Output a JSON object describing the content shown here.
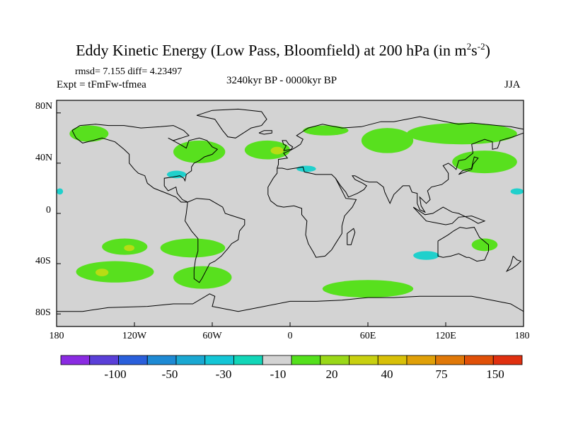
{
  "title": {
    "main": "Eddy Kinetic Energy (Low Pass, Bloomfield) at 200 hPa (in m",
    "sup1": "2",
    "mid": "s",
    "sup2": "-2",
    "close": ")"
  },
  "stats_label": "rmsd= 7.155 diff= 4.23497",
  "expt_label": "Expt = tFmFw-tfmea",
  "period_label": "3240kyr BP - 0000kyr BP",
  "season_label": "JJA",
  "map": {
    "projection": "cylindrical equidistant",
    "land_color": "#d3d3d3",
    "coastline_color": "#000000",
    "lon_range": [
      -180,
      180
    ],
    "lat_range": [
      -90,
      90
    ],
    "lon_ticks": [
      "180",
      "120W",
      "60W",
      "0",
      "60E",
      "120E",
      "180"
    ],
    "lat_ticks": [
      "80N",
      "40N",
      "0",
      "40S",
      "80S"
    ],
    "anomaly_regions": [
      {
        "color": "green",
        "lon": [
          -170,
          -140
        ],
        "lat": [
          57,
          70
        ]
      },
      {
        "color": "green",
        "lon": [
          -90,
          -50
        ],
        "lat": [
          40,
          58
        ]
      },
      {
        "color": "green",
        "lon": [
          -35,
          0
        ],
        "lat": [
          43,
          58
        ]
      },
      {
        "color": "green",
        "lon": [
          10,
          45
        ],
        "lat": [
          62,
          70
        ]
      },
      {
        "color": "green",
        "lon": [
          55,
          95
        ],
        "lat": [
          48,
          68
        ]
      },
      {
        "color": "green",
        "lon": [
          90,
          175
        ],
        "lat": [
          55,
          72
        ]
      },
      {
        "color": "green",
        "lon": [
          125,
          175
        ],
        "lat": [
          32,
          50
        ]
      },
      {
        "color": "green",
        "lon": [
          -145,
          -110
        ],
        "lat": [
          -33,
          -20
        ]
      },
      {
        "color": "green",
        "lon": [
          -100,
          -50
        ],
        "lat": [
          -35,
          -20
        ]
      },
      {
        "color": "green",
        "lon": [
          -165,
          -105
        ],
        "lat": [
          -55,
          -38
        ]
      },
      {
        "color": "green",
        "lon": [
          -90,
          -45
        ],
        "lat": [
          -60,
          -42
        ]
      },
      {
        "color": "green",
        "lon": [
          25,
          95
        ],
        "lat": [
          -67,
          -53
        ]
      },
      {
        "color": "green",
        "lon": [
          140,
          160
        ],
        "lat": [
          -30,
          -20
        ]
      },
      {
        "color": "yellow-green",
        "lon": [
          -128,
          -120
        ],
        "lat": [
          -30,
          -25
        ]
      },
      {
        "color": "yellow-green",
        "lon": [
          -150,
          -140
        ],
        "lat": [
          -50,
          -44
        ]
      },
      {
        "color": "yellow-green",
        "lon": [
          -15,
          -5
        ],
        "lat": [
          47,
          53
        ]
      },
      {
        "color": "cyan",
        "lon": [
          -95,
          -80
        ],
        "lat": [
          28,
          34
        ]
      },
      {
        "color": "cyan",
        "lon": [
          5,
          20
        ],
        "lat": [
          33,
          38
        ]
      },
      {
        "color": "cyan",
        "lon": [
          170,
          180
        ],
        "lat": [
          15,
          20
        ]
      },
      {
        "color": "cyan",
        "lon": [
          95,
          115
        ],
        "lat": [
          -37,
          -30
        ]
      },
      {
        "color": "cyan",
        "lon": [
          -180,
          -175
        ],
        "lat": [
          15,
          20
        ]
      }
    ]
  },
  "colorbar": {
    "colors": [
      "#8a2be2",
      "#5a3fd8",
      "#2a5fdb",
      "#1e8ad4",
      "#1aa8d2",
      "#14c6d6",
      "#12d6b8",
      "#d3d3d3",
      "#54e01c",
      "#9ad818",
      "#c8d010",
      "#d8c008",
      "#e0a008",
      "#e07808",
      "#e05008",
      "#e03010"
    ],
    "labels": [
      "-100",
      "-50",
      "-30",
      "-10",
      "20",
      "40",
      "75",
      "150"
    ]
  }
}
